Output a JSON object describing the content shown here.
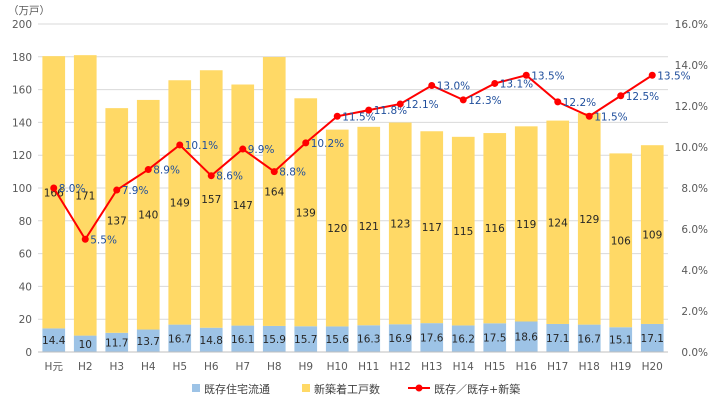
{
  "chart_data": {
    "type": "bar",
    "stacked": true,
    "unit_label": "（万戸）",
    "categories": [
      "H元",
      "H2",
      "H3",
      "H4",
      "H5",
      "H6",
      "H7",
      "H8",
      "H9",
      "H10",
      "H11",
      "H12",
      "H13",
      "H14",
      "H15",
      "H16",
      "H17",
      "H18",
      "H19",
      "H20"
    ],
    "series": [
      {
        "name": "既存住宅流通",
        "type": "bar",
        "color": "#9dc3e6",
        "values": [
          14.4,
          10,
          11.7,
          13.7,
          16.7,
          14.8,
          16.1,
          15.9,
          15.7,
          15.6,
          16.3,
          16.9,
          17.6,
          16.2,
          17.5,
          18.6,
          17.1,
          16.7,
          15.1,
          17.1
        ],
        "labels": [
          "14.4",
          "10",
          "11.7",
          "13.7",
          "16.7",
          "14.8",
          "16.1",
          "15.9",
          "15.7",
          "15.6",
          "16.3",
          "16.9",
          "17.6",
          "16.2",
          "17.5",
          "18.6",
          "17.1",
          "16.7",
          "15.1",
          "17.1"
        ]
      },
      {
        "name": "新築着工戸数",
        "type": "bar",
        "color": "#ffd966",
        "values": [
          166,
          171,
          137,
          140,
          149,
          157,
          147,
          164,
          139,
          120,
          121,
          123,
          117,
          115,
          116,
          119,
          124,
          129,
          106,
          109
        ],
        "labels": [
          "166",
          "171",
          "137",
          "140",
          "149",
          "157",
          "147",
          "164",
          "139",
          "120",
          "121",
          "123",
          "117",
          "115",
          "116",
          "119",
          "124",
          "129",
          "106",
          "109"
        ]
      },
      {
        "name": "既存／既存+新築",
        "type": "line",
        "axis": "right",
        "color": "#ff0000",
        "values": [
          8.0,
          5.5,
          7.9,
          8.9,
          10.1,
          8.6,
          9.9,
          8.8,
          10.2,
          11.5,
          11.8,
          12.1,
          13.0,
          12.3,
          13.1,
          13.5,
          12.2,
          11.5,
          12.5,
          13.5
        ],
        "labels": [
          "8.0%",
          "5.5%",
          "7.9%",
          "8.9%",
          "10.1%",
          "8.6%",
          "9.9%",
          "8.8%",
          "10.2%",
          "11.5%",
          "11.8%",
          "12.1%",
          "13.0%",
          "12.3%",
          "13.1%",
          "13.5%",
          "12.2%",
          "11.5%",
          "12.5%",
          "13.5%"
        ]
      }
    ],
    "y_left": {
      "min": 0,
      "max": 200,
      "step": 20,
      "ticks": [
        "0",
        "20",
        "40",
        "60",
        "80",
        "100",
        "120",
        "140",
        "160",
        "180",
        "200"
      ]
    },
    "y_right": {
      "min": 0,
      "max": 16,
      "step": 2,
      "ticks": [
        "0.0%",
        "2.0%",
        "4.0%",
        "6.0%",
        "8.0%",
        "10.0%",
        "12.0%",
        "14.0%",
        "16.0%"
      ]
    },
    "grid": true,
    "legend_position": "bottom"
  }
}
